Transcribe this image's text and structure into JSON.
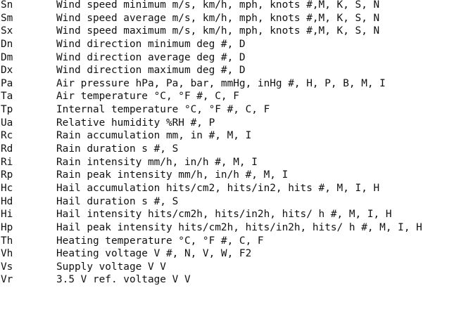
{
  "parameters": [
    {
      "code": "Sn",
      "description": "Wind speed minimum m/s, km/h, mph, knots #,M, K, S, N"
    },
    {
      "code": "Sm",
      "description": "Wind speed average m/s, km/h, mph, knots #,M, K, S, N"
    },
    {
      "code": "Sx",
      "description": "Wind speed maximum m/s, km/h, mph, knots #,M, K, S, N"
    },
    {
      "code": "Dn",
      "description": "Wind direction minimum deg #, D"
    },
    {
      "code": "Dm",
      "description": "Wind direction average deg #, D"
    },
    {
      "code": "Dx",
      "description": "Wind direction maximum deg #, D"
    },
    {
      "code": "Pa",
      "description": "Air pressure hPa, Pa, bar, mmHg, inHg #, H, P, B, M, I"
    },
    {
      "code": "Ta",
      "description": "Air temperature °C, °F #, C, F"
    },
    {
      "code": "Tp",
      "description": "Internal temperature °C, °F #, C, F"
    },
    {
      "code": "Ua",
      "description": "Relative humidity %RH #, P"
    },
    {
      "code": "Rc",
      "description": "Rain accumulation mm, in #, M, I"
    },
    {
      "code": "Rd",
      "description": "Rain duration s #, S"
    },
    {
      "code": "Ri",
      "description": "Rain intensity mm/h, in/h #, M, I"
    },
    {
      "code": "Rp",
      "description": "Rain peak intensity mm/h, in/h #, M, I"
    },
    {
      "code": "Hc",
      "description": "Hail accumulation hits/cm2, hits/in2, hits #, M, I, H"
    },
    {
      "code": "Hd",
      "description": "Hail duration s #, S"
    },
    {
      "code": "Hi",
      "description": "Hail intensity hits/cm2h, hits/in2h, hits/ h #, M, I, H"
    },
    {
      "code": "Hp",
      "description": "Hail peak intensity hits/cm2h, hits/in2h, hits/ h #, M, I, H"
    },
    {
      "code": "Th",
      "description": "Heating temperature °C, °F #, C, F"
    },
    {
      "code": "Vh",
      "description": "Heating voltage V #, N, V, W, F2"
    },
    {
      "code": "Vs",
      "description": "Supply voltage V V"
    },
    {
      "code": "Vr",
      "description": "3.5 V ref. voltage V V"
    }
  ]
}
